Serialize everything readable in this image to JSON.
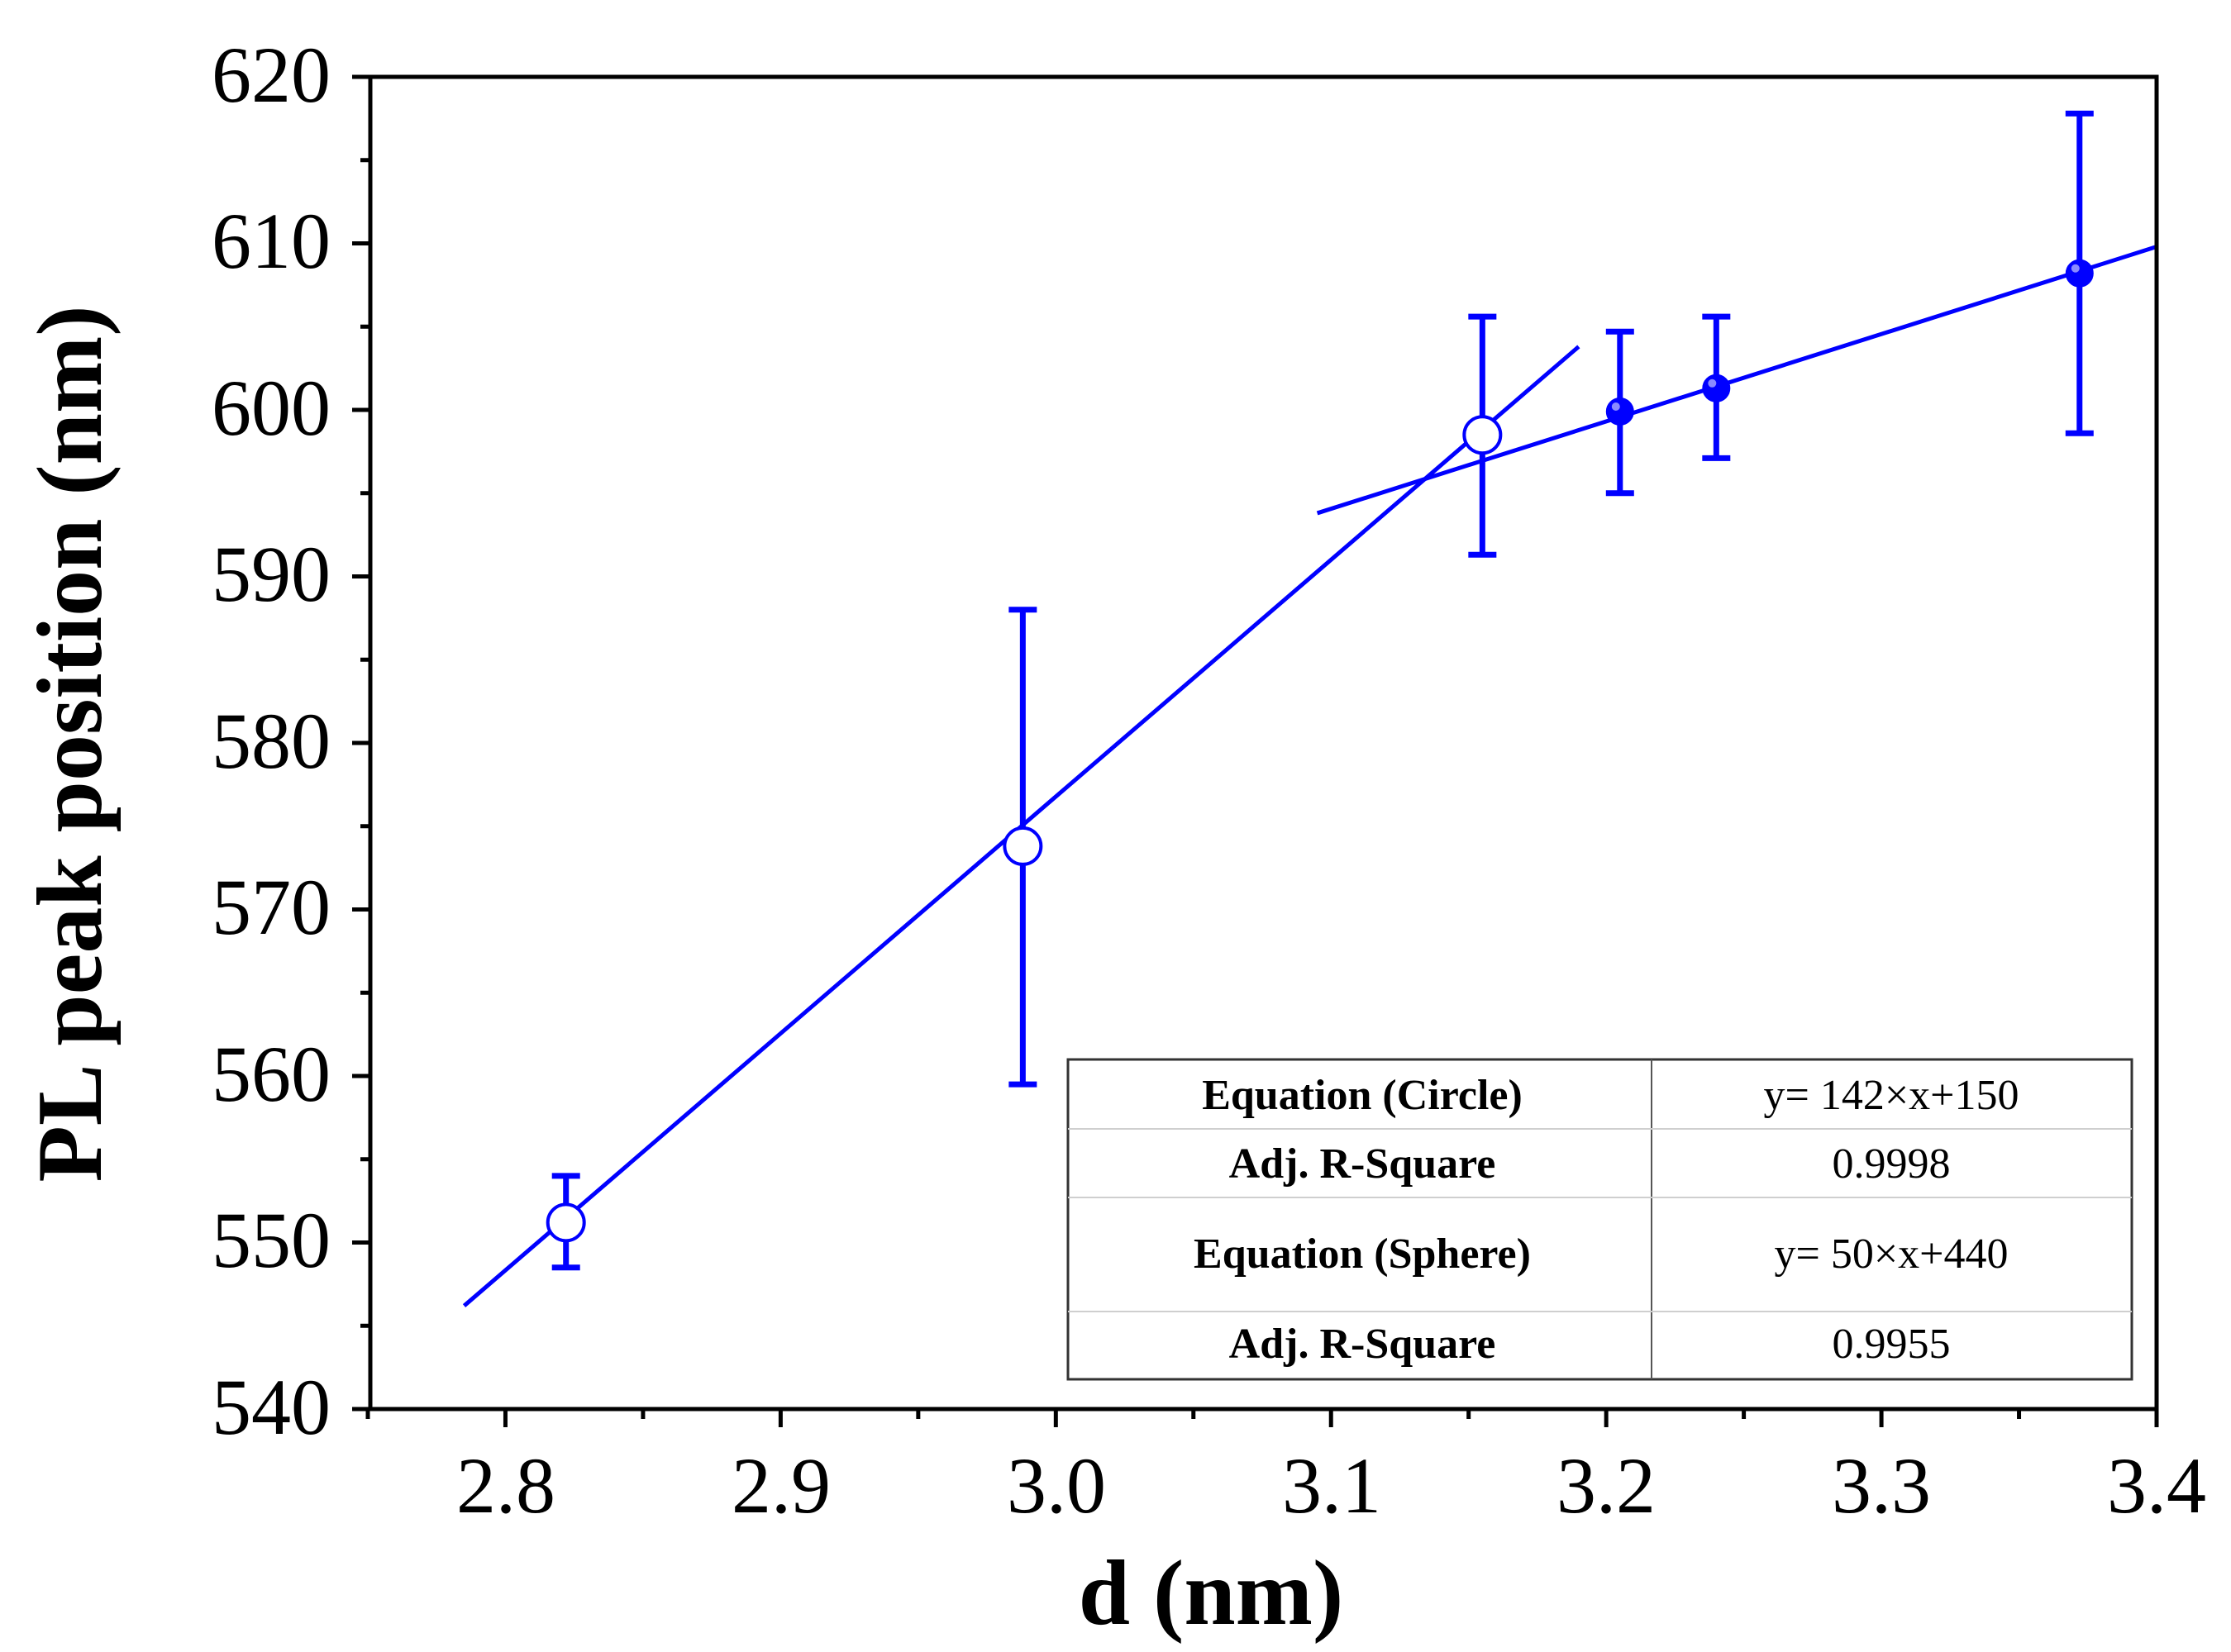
{
  "chart_data": {
    "type": "scatter",
    "title": "",
    "xlabel": "d (nm)",
    "ylabel": "PL peak position (nm)",
    "xlim": [
      2.75,
      3.4
    ],
    "ylim": [
      540,
      620
    ],
    "x_ticks": [
      "2.8",
      "2.9",
      "3.0",
      "3.1",
      "3.2",
      "3.3",
      "3.4"
    ],
    "y_ticks": [
      "540",
      "550",
      "560",
      "570",
      "580",
      "590",
      "600",
      "610",
      "620"
    ],
    "series": [
      {
        "name": "Circle",
        "marker": "open-circle",
        "color": "#0000ff",
        "points": [
          {
            "x": 2.822,
            "y": 551.2,
            "err_low": 548.5,
            "err_high": 554.0
          },
          {
            "x": 2.988,
            "y": 573.8,
            "err_low": 559.5,
            "err_high": 588.0
          },
          {
            "x": 3.155,
            "y": 598.5,
            "err_low": 591.3,
            "err_high": 605.6
          }
        ]
      },
      {
        "name": "Sphere",
        "marker": "filled-circle",
        "color": "#0000ff",
        "points": [
          {
            "x": 3.205,
            "y": 599.9,
            "err_low": 595.0,
            "err_high": 604.7
          },
          {
            "x": 3.24,
            "y": 601.3,
            "err_low": 597.1,
            "err_high": 605.6
          },
          {
            "x": 3.372,
            "y": 608.2,
            "err_low": 598.6,
            "err_high": 617.8
          }
        ]
      }
    ],
    "fit_lines": [
      {
        "name": "Circle fit",
        "color": "#0000ff",
        "x": [
          2.785,
          3.19
        ],
        "y": [
          546.2,
          603.8
        ]
      },
      {
        "name": "Sphere fit",
        "color": "#0000ff",
        "x": [
          3.095,
          3.4
        ],
        "y": [
          593.8,
          609.8
        ]
      }
    ],
    "table": {
      "rows": [
        {
          "label": "Equation (Circle)",
          "value": "y= 142×x+150"
        },
        {
          "label": "Adj. R-Square",
          "value": "0.9998"
        },
        {
          "label": "Equation (Sphere)",
          "value": "y= 50×x+440"
        },
        {
          "label": "Adj. R-Square",
          "value": "0.9955"
        }
      ]
    }
  }
}
